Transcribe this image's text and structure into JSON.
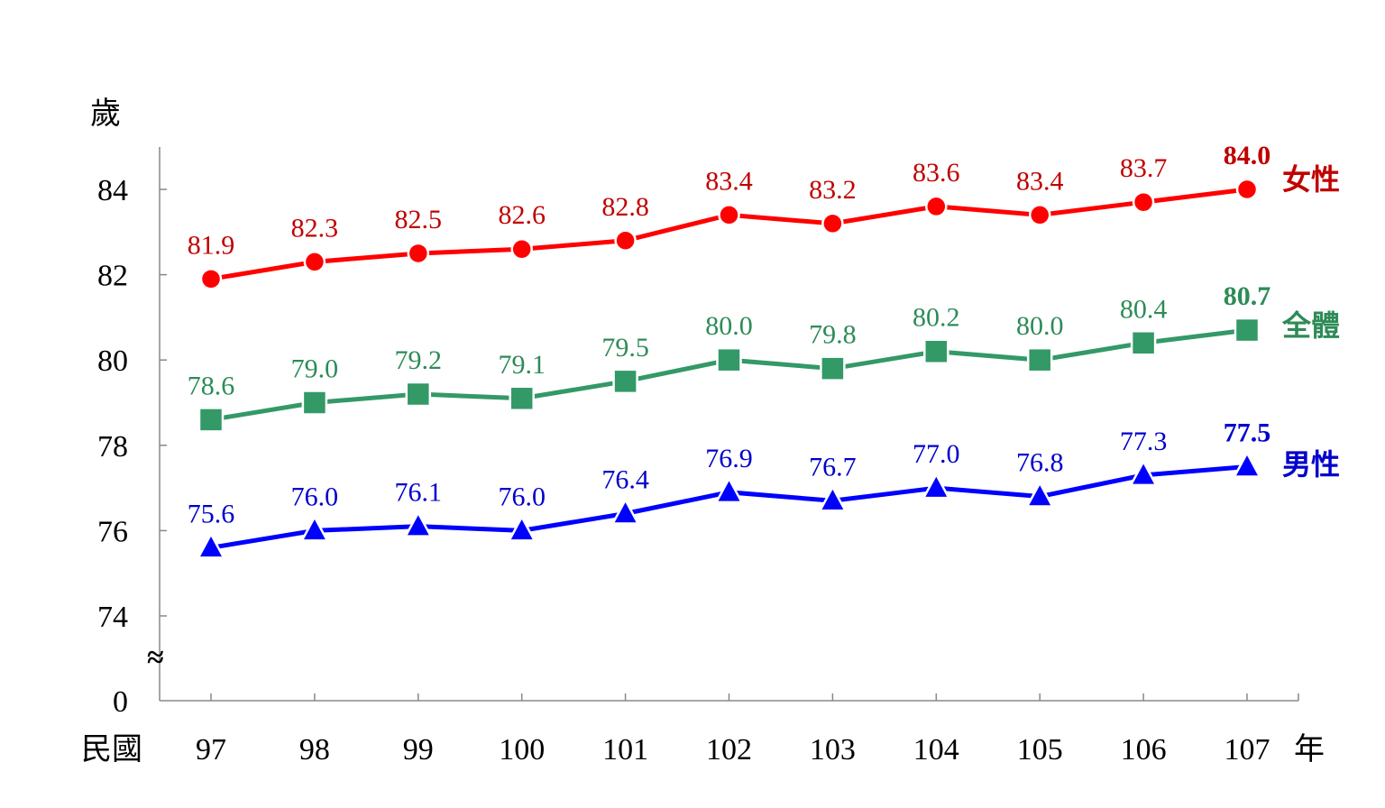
{
  "chart_data": {
    "type": "line",
    "title": "",
    "ylabel": "歲",
    "xlabel_prefix": "民國",
    "xlabel_suffix": "年",
    "x": [
      "97",
      "98",
      "99",
      "100",
      "101",
      "102",
      "103",
      "104",
      "105",
      "106",
      "107"
    ],
    "yticks": [
      "0",
      "74",
      "76",
      "78",
      "80",
      "82",
      "84"
    ],
    "ylim": [
      74,
      84
    ],
    "axis_break": "≈",
    "grid": false,
    "series": [
      {
        "name": "女性",
        "color": "#ff0000",
        "label_color": "#c00000",
        "marker": "circle",
        "values": [
          81.9,
          82.3,
          82.5,
          82.6,
          82.8,
          83.4,
          83.2,
          83.6,
          83.4,
          83.7,
          84.0
        ],
        "labels": [
          "81.9",
          "82.3",
          "82.5",
          "82.6",
          "82.8",
          "83.4",
          "83.2",
          "83.6",
          "83.4",
          "83.7",
          "84.0"
        ]
      },
      {
        "name": "全體",
        "color": "#339966",
        "label_color": "#2e8b57",
        "marker": "square",
        "values": [
          78.6,
          79.0,
          79.2,
          79.1,
          79.5,
          80.0,
          79.8,
          80.2,
          80.0,
          80.4,
          80.7
        ],
        "labels": [
          "78.6",
          "79.0",
          "79.2",
          "79.1",
          "79.5",
          "80.0",
          "79.8",
          "80.2",
          "80.0",
          "80.4",
          "80.7"
        ]
      },
      {
        "name": "男性",
        "color": "#0000ff",
        "label_color": "#0000cc",
        "marker": "triangle",
        "values": [
          75.6,
          76.0,
          76.1,
          76.0,
          76.4,
          76.9,
          76.7,
          77.0,
          76.8,
          77.3,
          77.5
        ],
        "labels": [
          "75.6",
          "76.0",
          "76.1",
          "76.0",
          "76.4",
          "76.9",
          "76.7",
          "77.0",
          "76.8",
          "77.3",
          "77.5"
        ]
      }
    ]
  }
}
